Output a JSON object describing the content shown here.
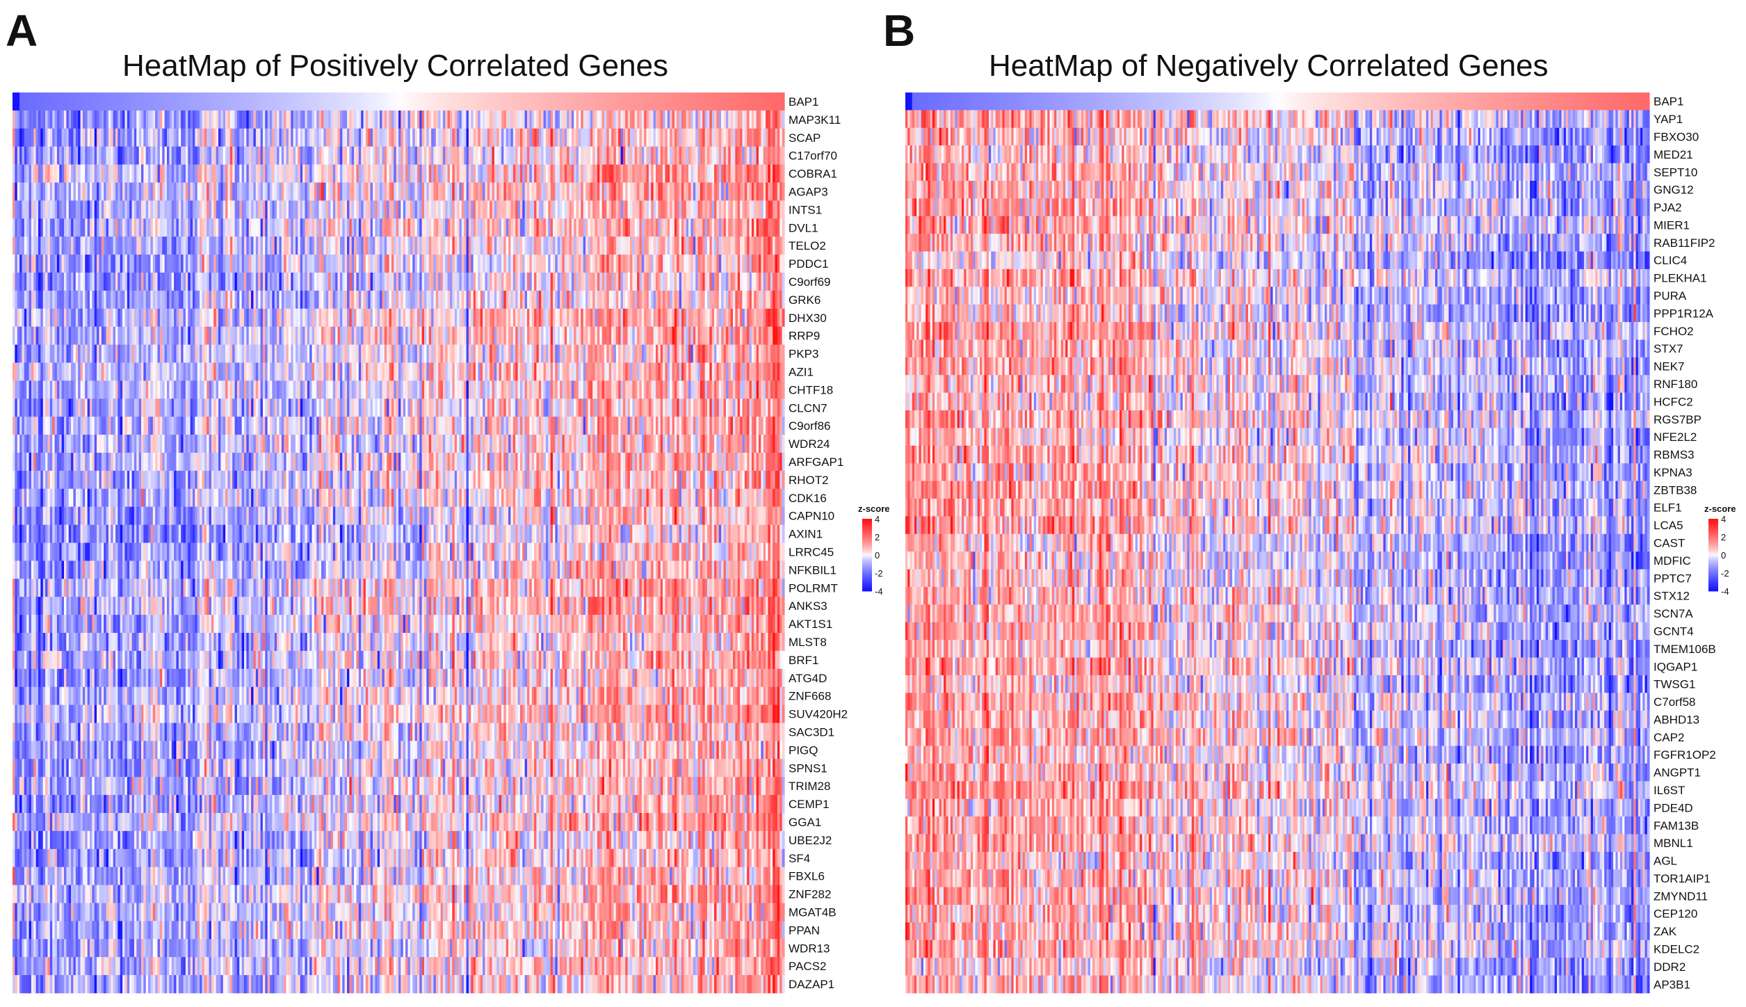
{
  "chart_data": [
    {
      "type": "heatmap",
      "panel_label": "A",
      "title": "HeatMap of Positively Correlated Genes",
      "colors": {
        "low": "#0000ff",
        "mid": "#ffffff",
        "high": "#ff0000"
      },
      "annotation_bar": {
        "gene": "BAP1",
        "order": "ascending"
      },
      "rows": [
        "BAP1",
        "MAP3K11",
        "SCAP",
        "C17orf70",
        "COBRA1",
        "AGAP3",
        "INTS1",
        "DVL1",
        "TELO2",
        "PDDC1",
        "C9orf69",
        "GRK6",
        "DHX30",
        "RRP9",
        "PKP3",
        "AZI1",
        "CHTF18",
        "CLCN7",
        "C9orf86",
        "WDR24",
        "ARFGAP1",
        "RHOT2",
        "CDK16",
        "CAPN10",
        "AXIN1",
        "LRRC45",
        "NFKBIL1",
        "POLRMT",
        "ANKS3",
        "AKT1S1",
        "MLST8",
        "BRF1",
        "ATG4D",
        "ZNF668",
        "SUV420H2",
        "SAC3D1",
        "PIGQ",
        "SPNS1",
        "TRIM28",
        "CEMP1",
        "GGA1",
        "UBE2J2",
        "SF4",
        "FBXL6",
        "ZNF282",
        "MGAT4B",
        "PPAN",
        "WDR13",
        "PACS2",
        "DAZAP1"
      ],
      "trend": "low-to-high",
      "legend": {
        "title": "z-score",
        "ticks": [
          "4",
          "2",
          "0",
          "-2",
          "-4"
        ],
        "range": [
          -4,
          4
        ]
      }
    },
    {
      "type": "heatmap",
      "panel_label": "B",
      "title": "HeatMap of Negatively Correlated Genes",
      "colors": {
        "low": "#0000ff",
        "mid": "#ffffff",
        "high": "#ff0000"
      },
      "annotation_bar": {
        "gene": "BAP1",
        "order": "ascending"
      },
      "rows": [
        "BAP1",
        "YAP1",
        "FBXO30",
        "MED21",
        "SEPT10",
        "GNG12",
        "PJA2",
        "MIER1",
        "RAB11FIP2",
        "CLIC4",
        "PLEKHA1",
        "PURA",
        "PPP1R12A",
        "FCHO2",
        "STX7",
        "NEK7",
        "RNF180",
        "HCFC2",
        "RGS7BP",
        "NFE2L2",
        "RBMS3",
        "KPNA3",
        "ZBTB38",
        "ELF1",
        "LCA5",
        "CAST",
        "MDFIC",
        "PPTC7",
        "STX12",
        "SCN7A",
        "GCNT4",
        "TMEM106B",
        "IQGAP1",
        "TWSG1",
        "C7orf58",
        "ABHD13",
        "CAP2",
        "FGFR1OP2",
        "ANGPT1",
        "IL6ST",
        "PDE4D",
        "FAM13B",
        "MBNL1",
        "AGL",
        "TOR1AIP1",
        "ZMYND11",
        "CEP120",
        "ZAK",
        "KDELC2",
        "DDR2",
        "AP3B1"
      ],
      "trend": "high-to-low",
      "legend": {
        "title": "z-score",
        "ticks": [
          "4",
          "2",
          "0",
          "-2",
          "-4"
        ],
        "range": [
          -4,
          4
        ]
      }
    }
  ]
}
